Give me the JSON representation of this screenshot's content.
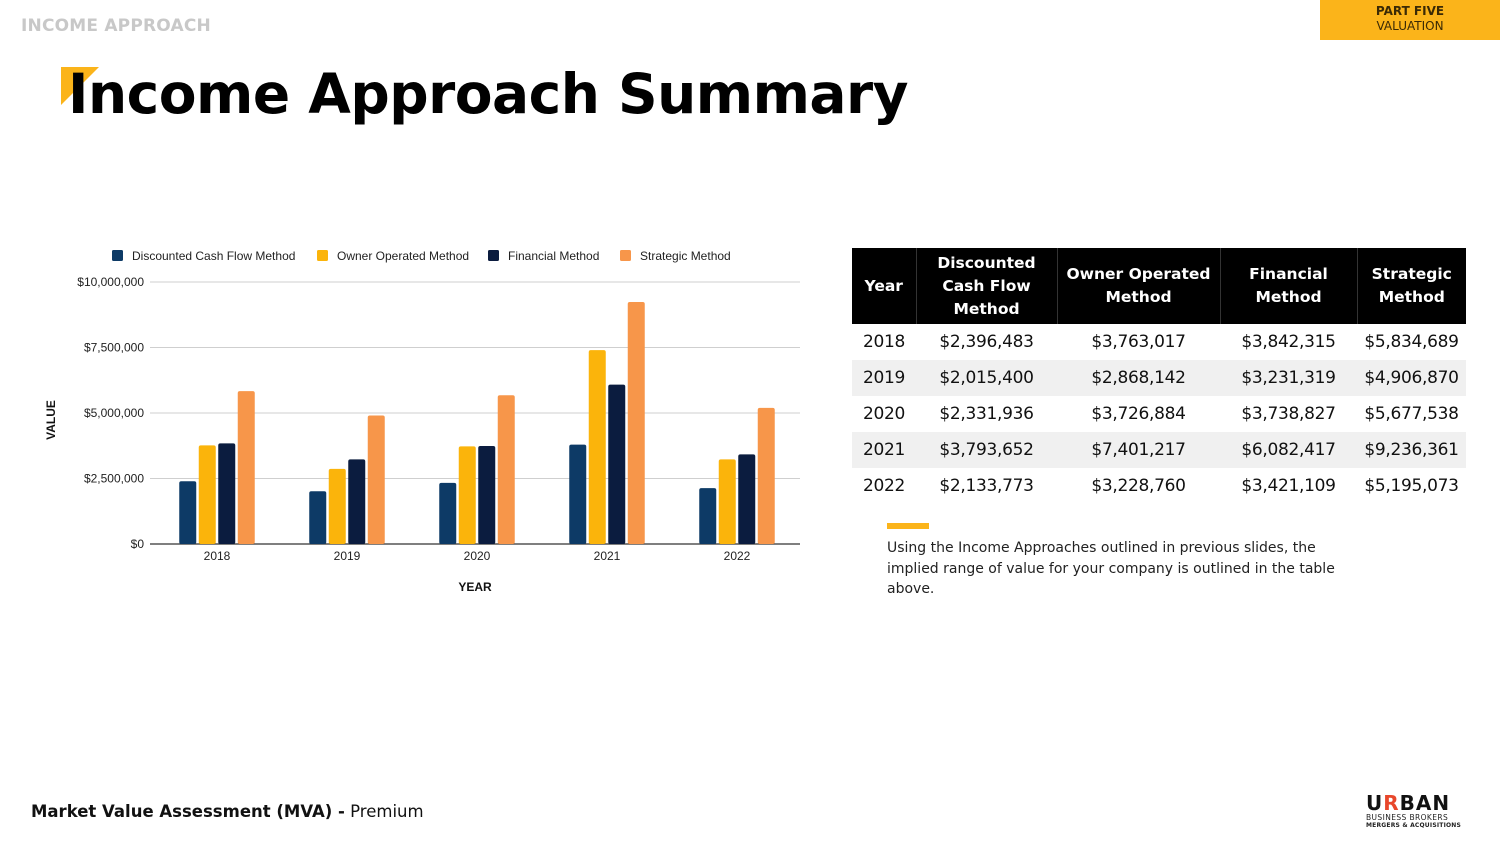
{
  "header": {
    "section_label": "INCOME APPROACH",
    "part_label": "PART FIVE",
    "part_sublabel": "VALUATION",
    "title": "Income Approach Summary"
  },
  "colors": {
    "accent": "#fbb41a",
    "dcf": "#0d3a66",
    "owner": "#fbb40b",
    "financial": "#0b1c3f",
    "strategic": "#f7964a"
  },
  "chart_data": {
    "type": "bar",
    "title": "",
    "xlabel": "YEAR",
    "ylabel": "VALUE",
    "categories": [
      "2018",
      "2019",
      "2020",
      "2021",
      "2022"
    ],
    "ylim": [
      0,
      10000000
    ],
    "yticks": [
      0,
      2500000,
      5000000,
      7500000,
      10000000
    ],
    "ytick_labels": [
      "$0",
      "$2,500,000",
      "$5,000,000",
      "$7,500,000",
      "$10,000,000"
    ],
    "grid": true,
    "legend_position": "top",
    "series": [
      {
        "name": "Discounted Cash Flow Method",
        "color": "#0d3a66",
        "values": [
          2396483,
          2015400,
          2331936,
          3793652,
          2133773
        ]
      },
      {
        "name": "Owner Operated Method",
        "color": "#fbb40b",
        "values": [
          3763017,
          2868142,
          3726884,
          7401217,
          3228760
        ]
      },
      {
        "name": "Financial Method",
        "color": "#0b1c3f",
        "values": [
          3842315,
          3231319,
          3738827,
          6082417,
          3421109
        ]
      },
      {
        "name": "Strategic Method",
        "color": "#f7964a",
        "values": [
          5834689,
          4906870,
          5677538,
          9236361,
          5195073
        ]
      }
    ]
  },
  "table": {
    "headers": [
      "Year",
      "Discounted Cash Flow Method",
      "Owner Operated Method",
      "Financial Method",
      "Strategic Method"
    ],
    "rows": [
      [
        "2018",
        "$2,396,483",
        "$3,763,017",
        "$3,842,315",
        "$5,834,689"
      ],
      [
        "2019",
        "$2,015,400",
        "$2,868,142",
        "$3,231,319",
        "$4,906,870"
      ],
      [
        "2020",
        "$2,331,936",
        "$3,726,884",
        "$3,738,827",
        "$5,677,538"
      ],
      [
        "2021",
        "$3,793,652",
        "$7,401,217",
        "$6,082,417",
        "$9,236,361"
      ],
      [
        "2022",
        "$2,133,773",
        "$3,228,760",
        "$3,421,109",
        "$5,195,073"
      ]
    ]
  },
  "note": "Using the Income Approaches outlined in previous slides, the implied range of value for your company is outlined in the table above.",
  "footer": {
    "bold": "Market Value Assessment (MVA) -",
    "light": " Premium"
  },
  "logo": {
    "main_prefix": "U",
    "main_r": "R",
    "main_suffix": "BAN",
    "line1": "BUSINESS BROKERS",
    "line2": "MERGERS & ACQUISITIONS"
  }
}
